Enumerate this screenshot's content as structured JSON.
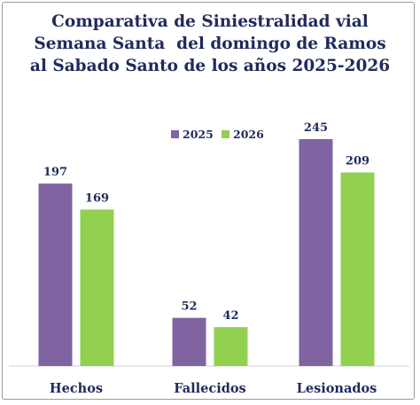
{
  "chart_data": {
    "type": "bar",
    "title_lines": [
      "Comparativa de Siniestralidad vial",
      "Semana Santa  del domingo de Ramos",
      "al Sabado Santo de los años 2025-2026"
    ],
    "categories": [
      "Hechos",
      "Fallecidos",
      "Lesionados"
    ],
    "series": [
      {
        "name": "2025",
        "values": [
          197,
          52,
          245
        ],
        "color": "#8064a2"
      },
      {
        "name": "2026",
        "values": [
          169,
          42,
          209
        ],
        "color": "#92d050"
      }
    ],
    "legend_position": "top-center",
    "grid": false,
    "ylim": [
      0,
      260
    ]
  }
}
